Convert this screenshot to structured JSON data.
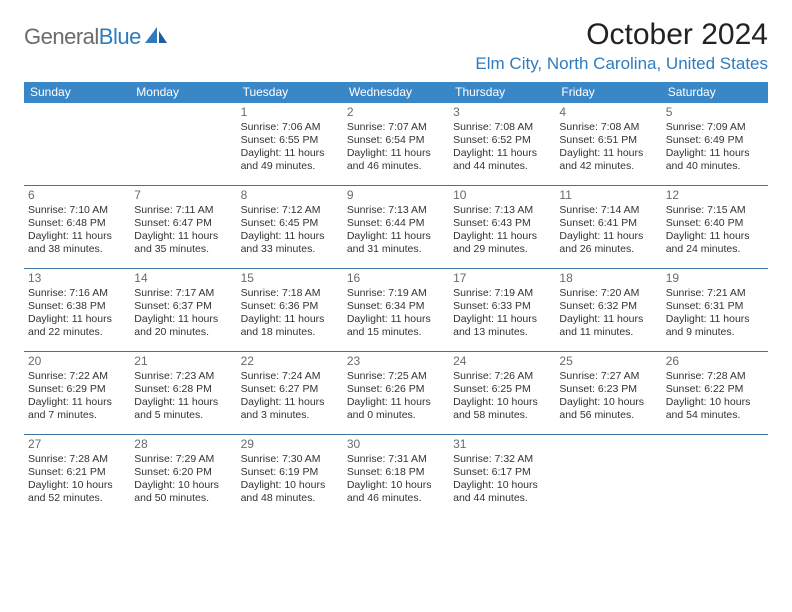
{
  "brand": {
    "part1": "General",
    "part2": "Blue"
  },
  "title": "October 2024",
  "location": "Elm City, North Carolina, United States",
  "colors": {
    "header_bg": "#3a87c7",
    "header_text": "#ffffff",
    "rule": "#3a75a5",
    "accent": "#2f7bbf",
    "body_text": "#333333",
    "daynum": "#6a6a6a",
    "background": "#ffffff"
  },
  "weekdays": [
    "Sunday",
    "Monday",
    "Tuesday",
    "Wednesday",
    "Thursday",
    "Friday",
    "Saturday"
  ],
  "weeks": [
    [
      null,
      null,
      {
        "n": "1",
        "a": "Sunrise: 7:06 AM",
        "b": "Sunset: 6:55 PM",
        "c": "Daylight: 11 hours",
        "d": "and 49 minutes."
      },
      {
        "n": "2",
        "a": "Sunrise: 7:07 AM",
        "b": "Sunset: 6:54 PM",
        "c": "Daylight: 11 hours",
        "d": "and 46 minutes."
      },
      {
        "n": "3",
        "a": "Sunrise: 7:08 AM",
        "b": "Sunset: 6:52 PM",
        "c": "Daylight: 11 hours",
        "d": "and 44 minutes."
      },
      {
        "n": "4",
        "a": "Sunrise: 7:08 AM",
        "b": "Sunset: 6:51 PM",
        "c": "Daylight: 11 hours",
        "d": "and 42 minutes."
      },
      {
        "n": "5",
        "a": "Sunrise: 7:09 AM",
        "b": "Sunset: 6:49 PM",
        "c": "Daylight: 11 hours",
        "d": "and 40 minutes."
      }
    ],
    [
      {
        "n": "6",
        "a": "Sunrise: 7:10 AM",
        "b": "Sunset: 6:48 PM",
        "c": "Daylight: 11 hours",
        "d": "and 38 minutes."
      },
      {
        "n": "7",
        "a": "Sunrise: 7:11 AM",
        "b": "Sunset: 6:47 PM",
        "c": "Daylight: 11 hours",
        "d": "and 35 minutes."
      },
      {
        "n": "8",
        "a": "Sunrise: 7:12 AM",
        "b": "Sunset: 6:45 PM",
        "c": "Daylight: 11 hours",
        "d": "and 33 minutes."
      },
      {
        "n": "9",
        "a": "Sunrise: 7:13 AM",
        "b": "Sunset: 6:44 PM",
        "c": "Daylight: 11 hours",
        "d": "and 31 minutes."
      },
      {
        "n": "10",
        "a": "Sunrise: 7:13 AM",
        "b": "Sunset: 6:43 PM",
        "c": "Daylight: 11 hours",
        "d": "and 29 minutes."
      },
      {
        "n": "11",
        "a": "Sunrise: 7:14 AM",
        "b": "Sunset: 6:41 PM",
        "c": "Daylight: 11 hours",
        "d": "and 26 minutes."
      },
      {
        "n": "12",
        "a": "Sunrise: 7:15 AM",
        "b": "Sunset: 6:40 PM",
        "c": "Daylight: 11 hours",
        "d": "and 24 minutes."
      }
    ],
    [
      {
        "n": "13",
        "a": "Sunrise: 7:16 AM",
        "b": "Sunset: 6:38 PM",
        "c": "Daylight: 11 hours",
        "d": "and 22 minutes."
      },
      {
        "n": "14",
        "a": "Sunrise: 7:17 AM",
        "b": "Sunset: 6:37 PM",
        "c": "Daylight: 11 hours",
        "d": "and 20 minutes."
      },
      {
        "n": "15",
        "a": "Sunrise: 7:18 AM",
        "b": "Sunset: 6:36 PM",
        "c": "Daylight: 11 hours",
        "d": "and 18 minutes."
      },
      {
        "n": "16",
        "a": "Sunrise: 7:19 AM",
        "b": "Sunset: 6:34 PM",
        "c": "Daylight: 11 hours",
        "d": "and 15 minutes."
      },
      {
        "n": "17",
        "a": "Sunrise: 7:19 AM",
        "b": "Sunset: 6:33 PM",
        "c": "Daylight: 11 hours",
        "d": "and 13 minutes."
      },
      {
        "n": "18",
        "a": "Sunrise: 7:20 AM",
        "b": "Sunset: 6:32 PM",
        "c": "Daylight: 11 hours",
        "d": "and 11 minutes."
      },
      {
        "n": "19",
        "a": "Sunrise: 7:21 AM",
        "b": "Sunset: 6:31 PM",
        "c": "Daylight: 11 hours",
        "d": "and 9 minutes."
      }
    ],
    [
      {
        "n": "20",
        "a": "Sunrise: 7:22 AM",
        "b": "Sunset: 6:29 PM",
        "c": "Daylight: 11 hours",
        "d": "and 7 minutes."
      },
      {
        "n": "21",
        "a": "Sunrise: 7:23 AM",
        "b": "Sunset: 6:28 PM",
        "c": "Daylight: 11 hours",
        "d": "and 5 minutes."
      },
      {
        "n": "22",
        "a": "Sunrise: 7:24 AM",
        "b": "Sunset: 6:27 PM",
        "c": "Daylight: 11 hours",
        "d": "and 3 minutes."
      },
      {
        "n": "23",
        "a": "Sunrise: 7:25 AM",
        "b": "Sunset: 6:26 PM",
        "c": "Daylight: 11 hours",
        "d": "and 0 minutes."
      },
      {
        "n": "24",
        "a": "Sunrise: 7:26 AM",
        "b": "Sunset: 6:25 PM",
        "c": "Daylight: 10 hours",
        "d": "and 58 minutes."
      },
      {
        "n": "25",
        "a": "Sunrise: 7:27 AM",
        "b": "Sunset: 6:23 PM",
        "c": "Daylight: 10 hours",
        "d": "and 56 minutes."
      },
      {
        "n": "26",
        "a": "Sunrise: 7:28 AM",
        "b": "Sunset: 6:22 PM",
        "c": "Daylight: 10 hours",
        "d": "and 54 minutes."
      }
    ],
    [
      {
        "n": "27",
        "a": "Sunrise: 7:28 AM",
        "b": "Sunset: 6:21 PM",
        "c": "Daylight: 10 hours",
        "d": "and 52 minutes."
      },
      {
        "n": "28",
        "a": "Sunrise: 7:29 AM",
        "b": "Sunset: 6:20 PM",
        "c": "Daylight: 10 hours",
        "d": "and 50 minutes."
      },
      {
        "n": "29",
        "a": "Sunrise: 7:30 AM",
        "b": "Sunset: 6:19 PM",
        "c": "Daylight: 10 hours",
        "d": "and 48 minutes."
      },
      {
        "n": "30",
        "a": "Sunrise: 7:31 AM",
        "b": "Sunset: 6:18 PM",
        "c": "Daylight: 10 hours",
        "d": "and 46 minutes."
      },
      {
        "n": "31",
        "a": "Sunrise: 7:32 AM",
        "b": "Sunset: 6:17 PM",
        "c": "Daylight: 10 hours",
        "d": "and 44 minutes."
      },
      null,
      null
    ]
  ]
}
